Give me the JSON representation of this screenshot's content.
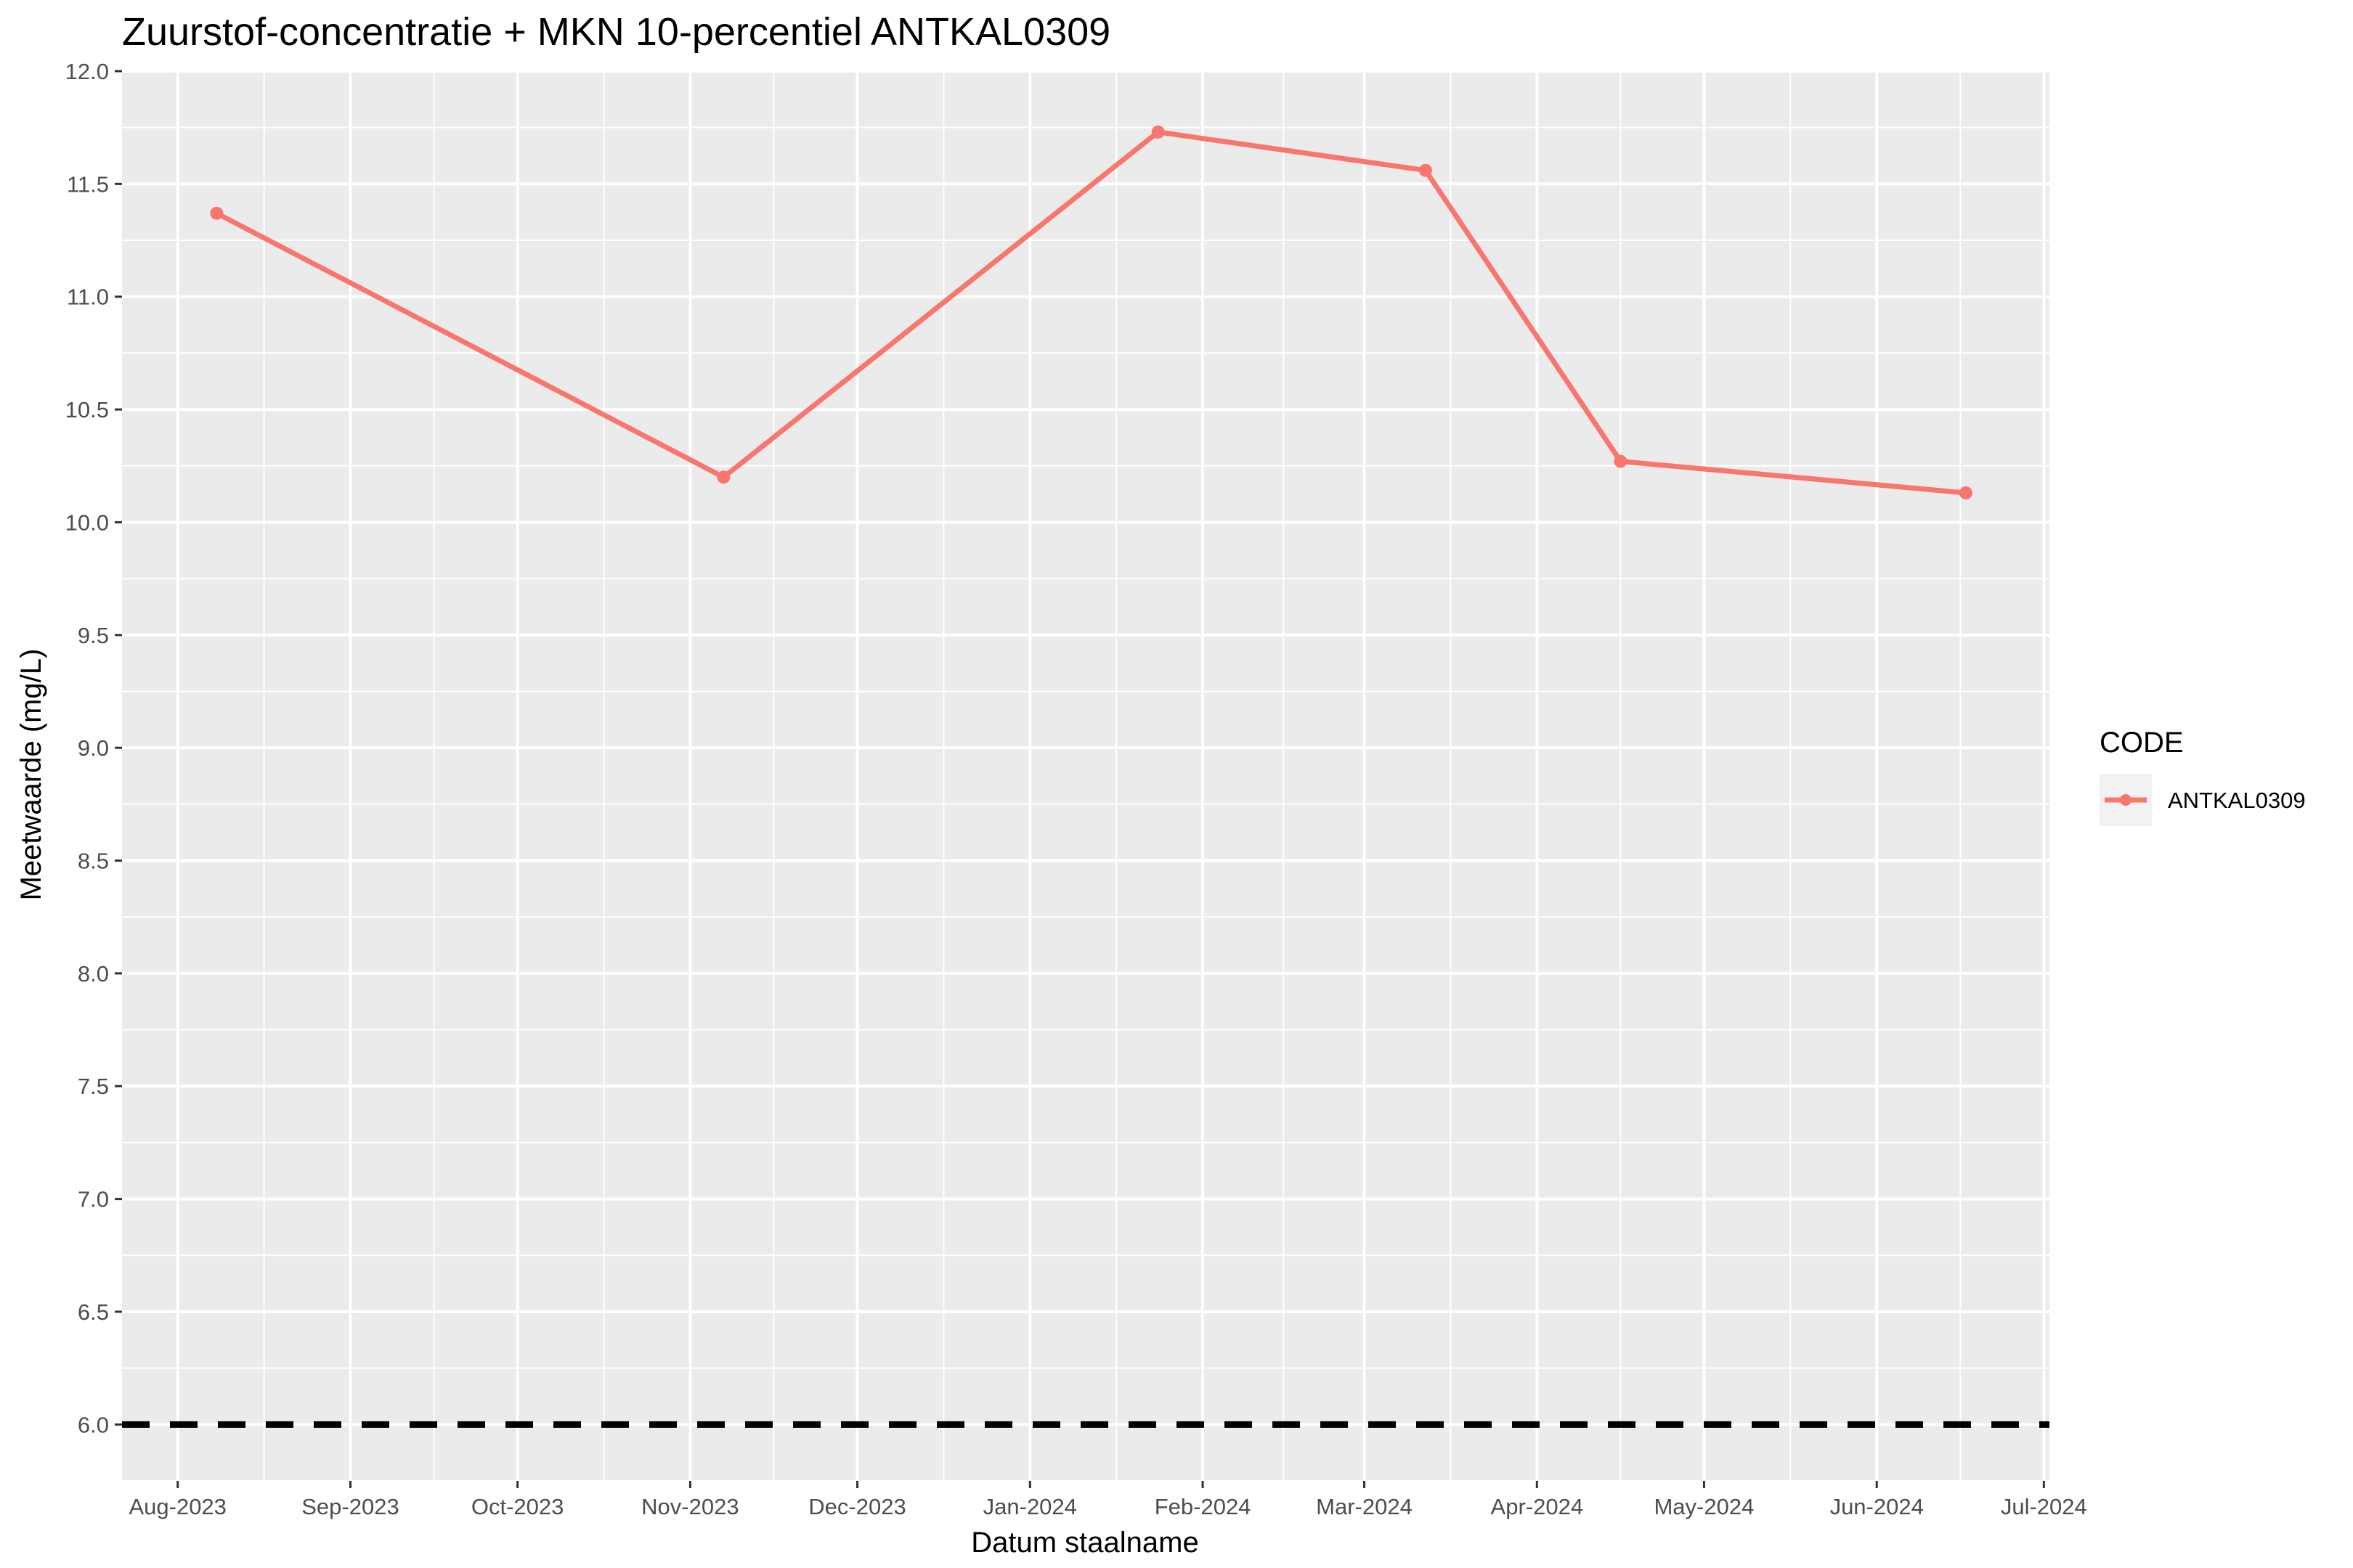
{
  "chart_data": {
    "type": "line",
    "title": "Zuurstof-concentratie + MKN 10-percentiel ANTKAL0309",
    "xlabel": "Datum staalname",
    "ylabel": "Meetwaarde (mg/L)",
    "x_tick_labels": [
      "Aug-2023",
      "Sep-2023",
      "Oct-2023",
      "Nov-2023",
      "Dec-2023",
      "Jan-2024",
      "Feb-2024",
      "Mar-2024",
      "Apr-2024",
      "May-2024",
      "Jun-2024",
      "Jul-2024"
    ],
    "x_tick_dates": [
      "2023-08-01",
      "2023-09-01",
      "2023-10-01",
      "2023-11-01",
      "2023-12-01",
      "2024-01-01",
      "2024-02-01",
      "2024-03-01",
      "2024-04-01",
      "2024-05-01",
      "2024-06-01",
      "2024-07-01"
    ],
    "xlim": [
      "2023-07-22",
      "2024-07-02"
    ],
    "ylim": [
      5.75,
      12.0
    ],
    "y_ticks": [
      "6.0",
      "6.5",
      "7.0",
      "7.5",
      "8.0",
      "8.5",
      "9.0",
      "9.5",
      "10.0",
      "10.5",
      "11.0",
      "11.5",
      "12.0"
    ],
    "series": [
      {
        "name": "ANTKAL0309",
        "color": "#F8766D",
        "x": [
          "2023-08-08",
          "2023-11-07",
          "2024-01-24",
          "2024-03-12",
          "2024-04-16",
          "2024-06-17"
        ],
        "values": [
          11.37,
          10.2,
          11.73,
          11.56,
          10.27,
          10.13
        ]
      }
    ],
    "reference_line": {
      "y": 6.0,
      "style": "dashed",
      "color": "#000000"
    },
    "legend": {
      "title": "CODE",
      "position": "right"
    },
    "grid": true,
    "panel_background": "#EBEBEB",
    "grid_color": "#FFFFFF"
  }
}
